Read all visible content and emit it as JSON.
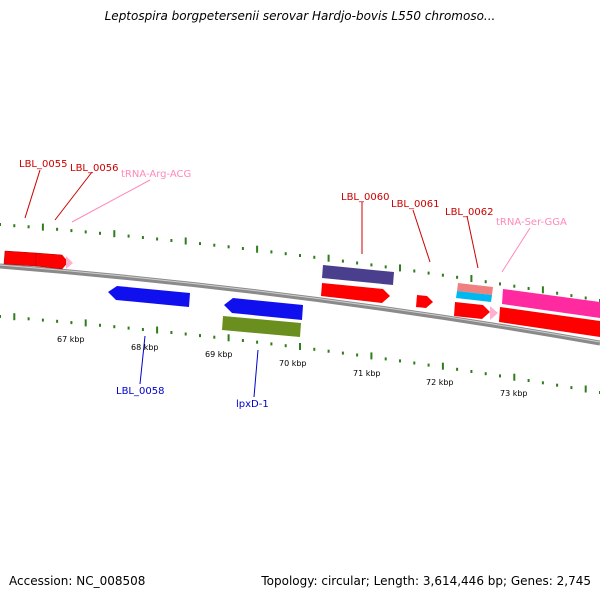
{
  "title": "Leptospira borgpetersenii serovar Hardjo-bovis L550 chromoso...",
  "footer": {
    "accession": "Accession: NC_008508",
    "summary": "Topology: circular; Length: 3,614,446 bp; Genes: 2,745"
  },
  "colors": {
    "backbone": "#8a8a8a",
    "tick": "#2f7d1c",
    "gene_red": "#ff0000",
    "gene_blue": "#1010ee",
    "gene_purple": "#4a3f8c",
    "gene_olive": "#6a8f1e",
    "gene_pink": "#ff2aa0",
    "gene_salmon": "#f08080",
    "gene_cyan": "#00b8f0",
    "trna": "#ffb0d0",
    "label_red": "#cc0000",
    "label_blue": "#0000cc",
    "label_pink": "#ff88bb"
  },
  "scale_labels": [
    "67 kbp",
    "68 kbp",
    "69 kbp",
    "70 kbp",
    "71 kbp",
    "72 kbp",
    "73 kbp"
  ],
  "feature_labels": {
    "lbl_0055": "LBL_0055",
    "lbl_0056": "LBL_0056",
    "trna_arg": "tRNA-Arg-ACG",
    "lbl_0060": "LBL_0060",
    "lbl_0061": "LBL_0061",
    "lbl_0062": "LBL_0062",
    "trna_ser": "tRNA-Ser-GGA",
    "lbl_0058": "LBL_0058",
    "lpxd": "lpxD-1"
  }
}
